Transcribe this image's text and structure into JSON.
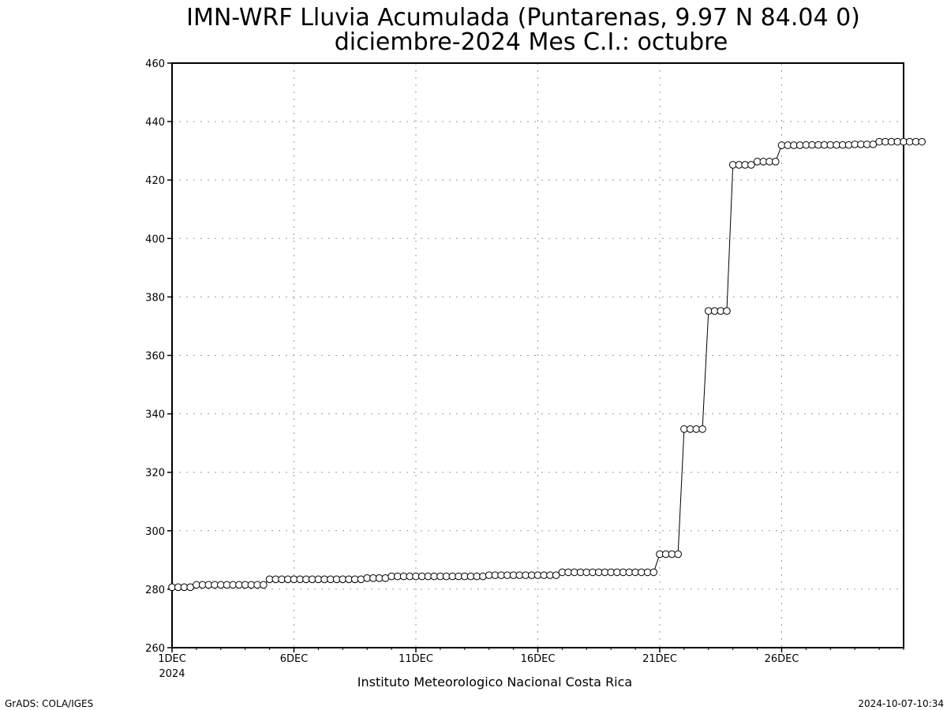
{
  "chart_data": {
    "type": "line",
    "title_line1": "IMN-WRF  Lluvia Acumulada (Puntarenas, 9.97  N 84.04  0)",
    "title_line2": "diciembre-2024 Mes C.I.: octubre",
    "xlabel": "Instituto Meteorologico Nacional Costa Rica",
    "ylabel": "",
    "ylim": [
      260,
      460
    ],
    "yticks": [
      260,
      280,
      300,
      320,
      340,
      360,
      380,
      400,
      420,
      440,
      460
    ],
    "xlim_days": [
      1,
      31
    ],
    "x_ticks": [
      {
        "day": 1,
        "label": "1DEC",
        "sublabel": "2024"
      },
      {
        "day": 6,
        "label": "6DEC"
      },
      {
        "day": 11,
        "label": "11DEC"
      },
      {
        "day": 16,
        "label": "16DEC"
      },
      {
        "day": 21,
        "label": "21DEC"
      },
      {
        "day": 26,
        "label": "26DEC"
      }
    ],
    "grid": true,
    "marker": "open-circle",
    "series": [
      {
        "points_per_day": 4,
        "start_day": 1,
        "values": [
          280.7,
          280.7,
          280.7,
          280.7,
          281.5,
          281.5,
          281.5,
          281.5,
          281.5,
          281.5,
          281.5,
          281.5,
          281.5,
          281.5,
          281.5,
          281.5,
          283.4,
          283.4,
          283.4,
          283.4,
          283.4,
          283.4,
          283.4,
          283.4,
          283.4,
          283.4,
          283.4,
          283.4,
          283.4,
          283.4,
          283.4,
          283.4,
          283.8,
          283.8,
          283.8,
          283.8,
          284.4,
          284.4,
          284.4,
          284.4,
          284.4,
          284.4,
          284.4,
          284.4,
          284.4,
          284.4,
          284.4,
          284.4,
          284.4,
          284.4,
          284.4,
          284.4,
          284.8,
          284.8,
          284.8,
          284.8,
          284.8,
          284.8,
          284.8,
          284.8,
          284.8,
          284.8,
          284.8,
          284.8,
          285.8,
          285.8,
          285.8,
          285.8,
          285.8,
          285.8,
          285.8,
          285.8,
          285.8,
          285.8,
          285.8,
          285.8,
          285.8,
          285.8,
          285.8,
          285.8,
          292.0,
          292.0,
          292.0,
          292.0,
          334.8,
          334.8,
          334.8,
          334.8,
          375.2,
          375.2,
          375.2,
          375.2,
          425.2,
          425.2,
          425.2,
          425.2,
          426.3,
          426.3,
          426.3,
          426.3,
          431.9,
          431.9,
          431.9,
          431.9,
          432.0,
          432.0,
          432.0,
          432.0,
          432.0,
          432.0,
          432.0,
          432.0,
          432.2,
          432.2,
          432.2,
          432.2,
          433.1,
          433.1,
          433.1,
          433.1,
          433.1,
          433.1,
          433.1,
          433.1
        ]
      }
    ]
  },
  "footer": {
    "left": "GrADS: COLA/IGES",
    "right": "2024-10-07-10:34"
  }
}
